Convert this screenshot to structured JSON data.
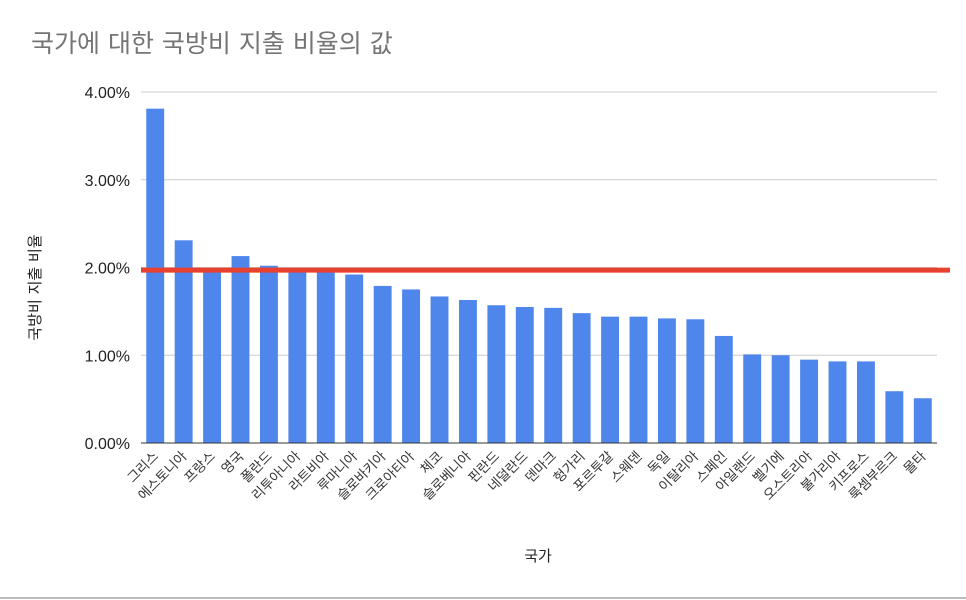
{
  "chart_data": {
    "type": "bar",
    "title": "국가에 대한 국방비 지출 비율의 값",
    "xlabel": "국가",
    "ylabel": "국방비 지출 비율",
    "ylim": [
      0,
      0.04
    ],
    "yticks": [
      {
        "value": 0,
        "label": "0.00%"
      },
      {
        "value": 0.01,
        "label": "1.00%"
      },
      {
        "value": 0.02,
        "label": "2.00%"
      },
      {
        "value": 0.03,
        "label": "3.00%"
      },
      {
        "value": 0.04,
        "label": "4.00%"
      }
    ],
    "grid": true,
    "legend": "none",
    "categories": [
      "그리스",
      "에스토니아",
      "프랑스",
      "영국",
      "폴란드",
      "리투아니아",
      "라트비아",
      "루마니아",
      "슬로바키아",
      "크로아티아",
      "체코",
      "슬로베니아",
      "핀란드",
      "네덜란드",
      "덴마크",
      "헝가리",
      "포르투갈",
      "스웨덴",
      "독일",
      "이탈리아",
      "스페인",
      "아일랜드",
      "벨기에",
      "오스트리아",
      "불가리아",
      "키프로스",
      "룩셈부르크",
      "몰타"
    ],
    "values": [
      0.0381,
      0.0231,
      0.0198,
      0.0213,
      0.0202,
      0.0197,
      0.0197,
      0.0192,
      0.0179,
      0.0175,
      0.0167,
      0.0163,
      0.0157,
      0.0155,
      0.0154,
      0.0148,
      0.0144,
      0.0144,
      0.0142,
      0.0141,
      0.0122,
      0.0101,
      0.01,
      0.0095,
      0.0093,
      0.0093,
      0.0059,
      0.0051
    ],
    "bar_color": "#4f86ec",
    "reference_line": {
      "value": 0.0197,
      "color": "#e8412f"
    }
  }
}
